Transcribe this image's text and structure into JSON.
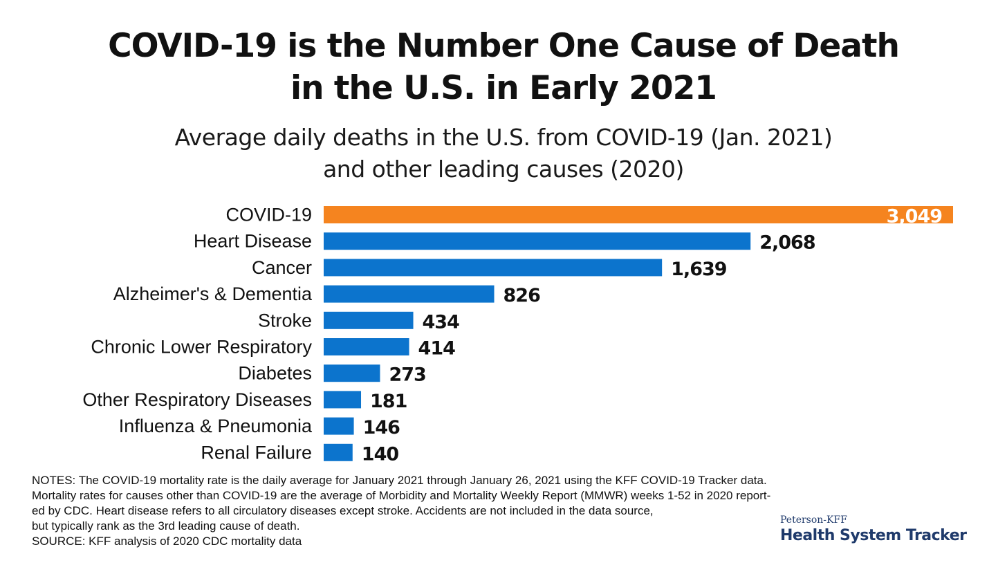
{
  "chart_data": {
    "type": "bar",
    "orientation": "horizontal",
    "title": "COVID-19 is the Number One Cause of Death in the U.S. in Early 2021",
    "title_lines": [
      "COVID-19 is the Number One Cause of Death",
      "in the U.S. in Early 2021"
    ],
    "subtitle": "Average daily deaths in the U.S. from COVID-19 (Jan. 2021) and other leading causes (2020)",
    "subtitle_lines": [
      "Average daily deaths in the U.S. from COVID-19 (Jan. 2021)",
      "and other leading causes (2020)"
    ],
    "categories": [
      "COVID-19",
      "Heart Disease",
      "Cancer",
      "Alzheimer's & Dementia",
      "Stroke",
      "Chronic Lower Respiratory",
      "Diabetes",
      "Other Respiratory Diseases",
      "Influenza & Pneumonia",
      "Renal Failure"
    ],
    "values": [
      3049,
      2068,
      1639,
      826,
      434,
      414,
      273,
      181,
      146,
      140
    ],
    "value_labels": [
      "3,049",
      "2,068",
      "1,639",
      "826",
      "434",
      "414",
      "273",
      "181",
      "146",
      "140"
    ],
    "xlim": [
      0,
      3049
    ],
    "grid": false,
    "colors": {
      "highlight": "#f5841f",
      "bar": "#0c74cd",
      "highlight_label": "#ffffff",
      "label": "#111111"
    }
  },
  "notes": [
    "NOTES: The COVID-19 mortality rate is the daily average for January 2021 through January 26, 2021 using the KFF COVID-19 Tracker data.",
    "Mortality rates for causes other than COVID-19 are the average of Morbidity and Mortality Weekly Report (MMWR) weeks 1-52 in 2020 report-",
    "ed by CDC. Heart disease refers to all circulatory diseases except stroke. Accidents are not included in the data source,",
    "but typically rank as the 3rd leading cause of death.",
    "SOURCE: KFF analysis of 2020 CDC mortality data"
  ],
  "logo": {
    "small": "Peterson-KFF",
    "big": "Health System Tracker"
  }
}
